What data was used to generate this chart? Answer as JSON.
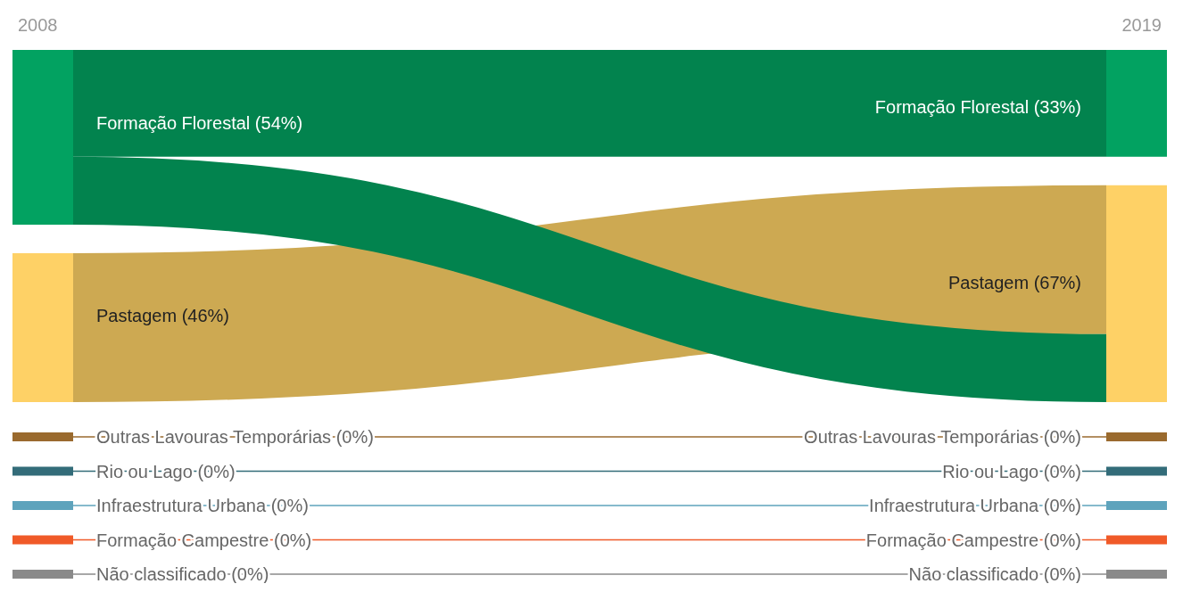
{
  "chart_data": {
    "type": "other",
    "categories": [
      "Formação Florestal",
      "Pastagem",
      "Outras Lavouras Temporárias",
      "Rio ou Lago",
      "Infraestrutura Urbana",
      "Formação Campestre",
      "Não classificado"
    ],
    "colors": [
      "#02a261",
      "#fed166",
      "#9a6a2e",
      "#336c79",
      "#5ea3bc",
      "#f05a28",
      "#8a8a8a"
    ],
    "series": [
      {
        "name": "2008",
        "values": [
          54,
          46,
          0,
          0,
          0,
          0,
          0
        ],
        "value_labels": [
          "(54%)",
          "(46%)",
          "(0%)",
          "(0%)",
          "(0%)",
          "(0%)",
          "(0%)"
        ]
      },
      {
        "name": "2019",
        "values": [
          33,
          67,
          0,
          0,
          0,
          0,
          0
        ],
        "value_labels": [
          "(33%)",
          "(67%)",
          "(0%)",
          "(0%)",
          "(0%)",
          "(0%)",
          "(0%)"
        ]
      }
    ]
  }
}
